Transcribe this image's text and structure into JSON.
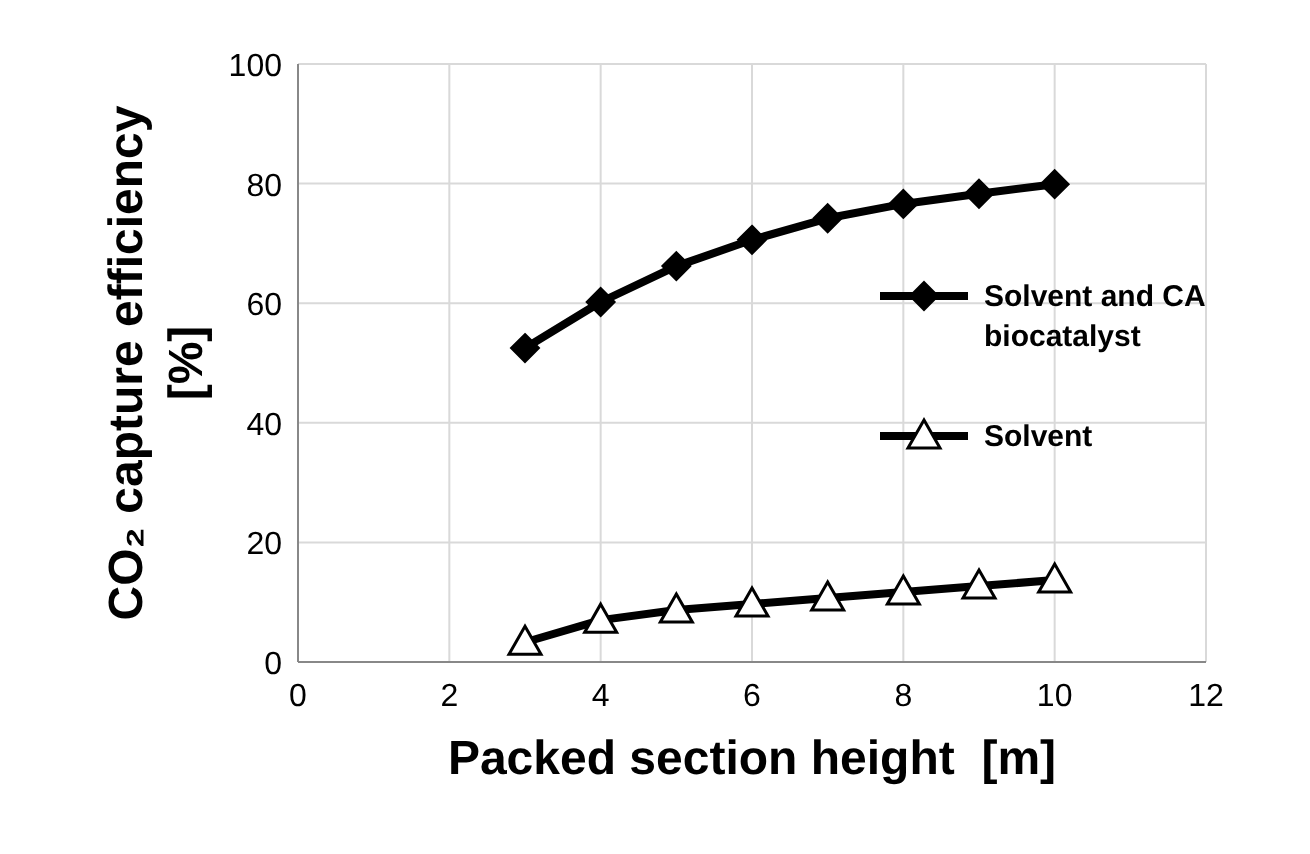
{
  "chart_data": {
    "type": "line",
    "xlabel": "Packed section height  [m]",
    "ylabel": "CO₂ capture efficiency [%]",
    "x": [
      3,
      4,
      5,
      6,
      7,
      8,
      9,
      10
    ],
    "series": [
      {
        "name": "Solvent and CA biocatalyst",
        "color": "#000000",
        "marker": "diamond",
        "values": [
          52.5,
          60.2,
          66.2,
          70.6,
          74.2,
          76.6,
          78.3,
          79.9
        ]
      },
      {
        "name": "Solvent",
        "color": "#000000",
        "marker": "triangle",
        "values": [
          3.3,
          7,
          8.7,
          9.7,
          10.7,
          11.7,
          12.7,
          13.7
        ]
      }
    ],
    "xlim": [
      0,
      12
    ],
    "xticks": [
      0,
      2,
      4,
      6,
      8,
      10,
      12
    ],
    "ylim": [
      0,
      100
    ],
    "yticks": [
      0,
      20,
      40,
      60,
      80,
      100
    ],
    "grid": true,
    "legend": "right",
    "line_style": "solid"
  }
}
